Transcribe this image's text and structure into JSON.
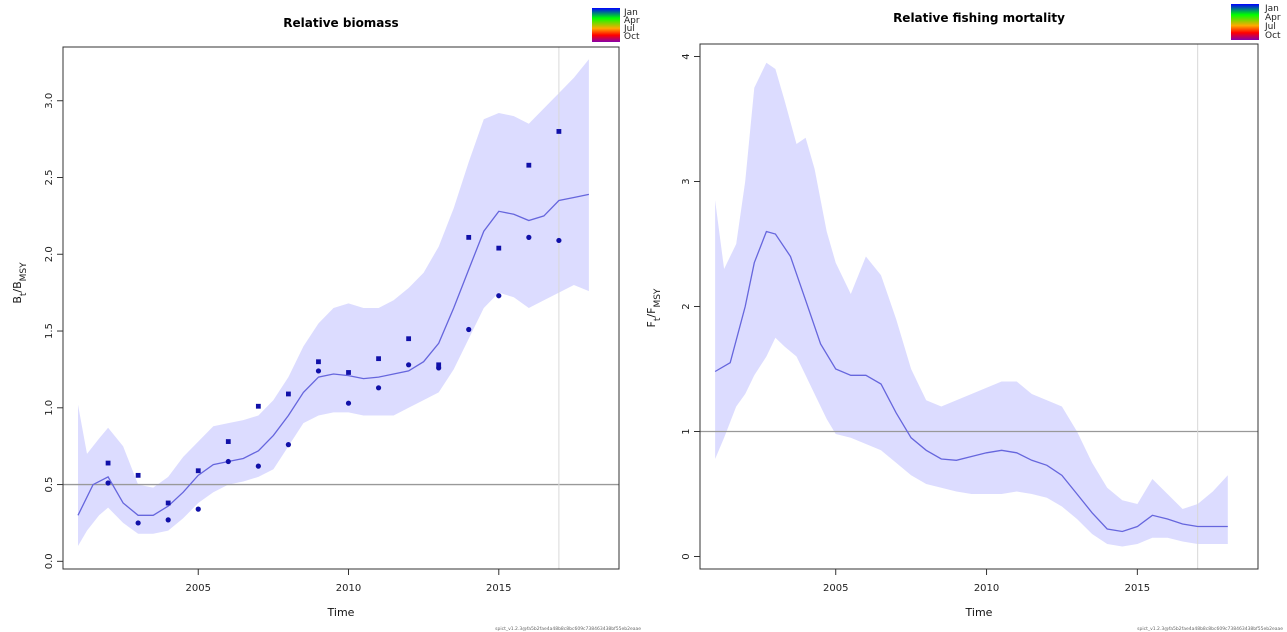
{
  "season_legend": {
    "labels": [
      "Jan",
      "Apr",
      "Jul",
      "Oct"
    ]
  },
  "chart_data": [
    {
      "type": "line",
      "title": "Relative biomass",
      "xlabel": "Time",
      "ylabel_main": "B",
      "ylabel_sub1": "t",
      "ylabel_sep": "/B",
      "ylabel_sub2": "MSY",
      "xlim": [
        2000.5,
        2019.0
      ],
      "ylim": [
        -0.05,
        3.35
      ],
      "xticks": [
        2005,
        2010,
        2015
      ],
      "yticks": [
        0.0,
        0.5,
        1.0,
        1.5,
        2.0,
        2.5,
        3.0
      ],
      "xtick_labels": [
        "2005",
        "2010",
        "2015"
      ],
      "ytick_labels": [
        "0.0",
        "0.5",
        "1.0",
        "1.5",
        "2.0",
        "2.5",
        "3.0"
      ],
      "reference_line_y": 0.5,
      "vertical_line_x": 2017.0,
      "band_x": [
        2001.0,
        2001.3,
        2001.7,
        2002.0,
        2002.5,
        2003.0,
        2003.5,
        2004.0,
        2004.5,
        2005.0,
        2005.5,
        2006.0,
        2006.5,
        2007.0,
        2007.5,
        2008.0,
        2008.5,
        2009.0,
        2009.5,
        2010.0,
        2010.5,
        2011.0,
        2011.5,
        2012.0,
        2012.5,
        2013.0,
        2013.5,
        2014.0,
        2014.5,
        2015.0,
        2015.5,
        2016.0,
        2016.5,
        2017.0,
        2017.5,
        2018.0
      ],
      "band_upper": [
        1.02,
        0.7,
        0.8,
        0.87,
        0.75,
        0.5,
        0.48,
        0.55,
        0.68,
        0.78,
        0.88,
        0.9,
        0.92,
        0.95,
        1.05,
        1.2,
        1.4,
        1.55,
        1.65,
        1.68,
        1.65,
        1.65,
        1.7,
        1.78,
        1.88,
        2.05,
        2.3,
        2.6,
        2.88,
        2.92,
        2.9,
        2.85,
        2.95,
        3.05,
        3.15,
        3.27
      ],
      "band_lower": [
        0.1,
        0.2,
        0.3,
        0.35,
        0.25,
        0.18,
        0.18,
        0.2,
        0.28,
        0.38,
        0.45,
        0.5,
        0.52,
        0.55,
        0.6,
        0.75,
        0.9,
        0.95,
        0.97,
        0.97,
        0.95,
        0.95,
        0.95,
        1.0,
        1.05,
        1.1,
        1.25,
        1.45,
        1.65,
        1.75,
        1.72,
        1.65,
        1.7,
        1.75,
        1.8,
        1.76
      ],
      "line_x": [
        2001.0,
        2001.5,
        2002.0,
        2002.5,
        2003.0,
        2003.5,
        2004.0,
        2004.5,
        2005.0,
        2005.5,
        2006.0,
        2006.5,
        2007.0,
        2007.5,
        2008.0,
        2008.5,
        2009.0,
        2009.5,
        2010.0,
        2010.5,
        2011.0,
        2011.5,
        2012.0,
        2012.5,
        2013.0,
        2013.5,
        2014.0,
        2014.5,
        2015.0,
        2015.5,
        2016.0,
        2016.5,
        2017.0,
        2017.5,
        2018.0
      ],
      "line_y": [
        0.3,
        0.5,
        0.55,
        0.38,
        0.3,
        0.3,
        0.36,
        0.45,
        0.56,
        0.63,
        0.65,
        0.67,
        0.72,
        0.82,
        0.95,
        1.1,
        1.2,
        1.22,
        1.21,
        1.19,
        1.2,
        1.22,
        1.24,
        1.3,
        1.42,
        1.65,
        1.9,
        2.15,
        2.28,
        2.26,
        2.22,
        2.25,
        2.35,
        2.37,
        2.39
      ],
      "points": [
        [
          2002.0,
          0.64
        ],
        [
          2002.0,
          0.51
        ],
        [
          2003.0,
          0.56
        ],
        [
          2003.0,
          0.25
        ],
        [
          2004.0,
          0.38
        ],
        [
          2004.0,
          0.27
        ],
        [
          2005.0,
          0.59
        ],
        [
          2005.0,
          0.34
        ],
        [
          2006.0,
          0.78
        ],
        [
          2006.0,
          0.65
        ],
        [
          2007.0,
          1.01
        ],
        [
          2007.0,
          0.62
        ],
        [
          2008.0,
          1.09
        ],
        [
          2008.0,
          0.76
        ],
        [
          2009.0,
          1.3
        ],
        [
          2009.0,
          1.24
        ],
        [
          2010.0,
          1.23
        ],
        [
          2010.0,
          1.03
        ],
        [
          2011.0,
          1.32
        ],
        [
          2011.0,
          1.13
        ],
        [
          2012.0,
          1.45
        ],
        [
          2012.0,
          1.28
        ],
        [
          2013.0,
          1.28
        ],
        [
          2013.0,
          1.26
        ],
        [
          2014.0,
          2.11
        ],
        [
          2014.0,
          1.51
        ],
        [
          2015.0,
          2.04
        ],
        [
          2015.0,
          1.73
        ],
        [
          2016.0,
          2.58
        ],
        [
          2016.0,
          2.11
        ],
        [
          2017.0,
          2.8
        ],
        [
          2017.0,
          2.09
        ]
      ],
      "footnote": "spict_v1.2.3@fa5b2fae4a48b8c8bc609c738463438bf55eb2eaae"
    },
    {
      "type": "line",
      "title": "Relative fishing mortality",
      "xlabel": "Time",
      "ylabel_main": "F",
      "ylabel_sub1": "t",
      "ylabel_sep": "/F",
      "ylabel_sub2": "MSY",
      "xlim": [
        2000.5,
        2019.0
      ],
      "ylim": [
        -0.1,
        4.1
      ],
      "xticks": [
        2005,
        2010,
        2015
      ],
      "yticks": [
        0,
        1,
        2,
        3,
        4
      ],
      "xtick_labels": [
        "2005",
        "2010",
        "2015"
      ],
      "ytick_labels": [
        "0",
        "1",
        "2",
        "3",
        "4"
      ],
      "reference_line_y": 1.0,
      "vertical_line_x": 2017.0,
      "band_x": [
        2001.0,
        2001.3,
        2001.7,
        2002.0,
        2002.3,
        2002.7,
        2003.0,
        2003.3,
        2003.7,
        2004.0,
        2004.3,
        2004.7,
        2005.0,
        2005.5,
        2006.0,
        2006.5,
        2007.0,
        2007.5,
        2008.0,
        2008.5,
        2009.0,
        2009.5,
        2010.0,
        2010.5,
        2011.0,
        2011.5,
        2012.0,
        2012.5,
        2013.0,
        2013.5,
        2014.0,
        2014.5,
        2015.0,
        2015.5,
        2016.0,
        2016.5,
        2017.0,
        2017.5,
        2018.0
      ],
      "band_upper": [
        2.85,
        2.3,
        2.5,
        3.0,
        3.75,
        3.95,
        3.9,
        3.65,
        3.3,
        3.35,
        3.1,
        2.6,
        2.35,
        2.1,
        2.4,
        2.25,
        1.9,
        1.5,
        1.25,
        1.2,
        1.25,
        1.3,
        1.35,
        1.4,
        1.4,
        1.3,
        1.25,
        1.2,
        1.0,
        0.75,
        0.55,
        0.45,
        0.42,
        0.62,
        0.5,
        0.38,
        0.42,
        0.52,
        0.65
      ],
      "band_lower": [
        0.78,
        0.95,
        1.2,
        1.3,
        1.45,
        1.6,
        1.75,
        1.68,
        1.6,
        1.45,
        1.3,
        1.1,
        0.98,
        0.95,
        0.9,
        0.85,
        0.75,
        0.65,
        0.58,
        0.55,
        0.52,
        0.5,
        0.5,
        0.5,
        0.52,
        0.5,
        0.47,
        0.4,
        0.3,
        0.18,
        0.1,
        0.08,
        0.1,
        0.15,
        0.15,
        0.12,
        0.1,
        0.1,
        0.1
      ],
      "line_x": [
        2001.0,
        2001.5,
        2002.0,
        2002.3,
        2002.7,
        2003.0,
        2003.5,
        2004.0,
        2004.5,
        2005.0,
        2005.5,
        2006.0,
        2006.5,
        2007.0,
        2007.5,
        2008.0,
        2008.5,
        2009.0,
        2009.5,
        2010.0,
        2010.5,
        2011.0,
        2011.5,
        2012.0,
        2012.5,
        2013.0,
        2013.5,
        2014.0,
        2014.5,
        2015.0,
        2015.5,
        2016.0,
        2016.5,
        2017.0,
        2017.5,
        2018.0
      ],
      "line_y": [
        1.48,
        1.55,
        2.0,
        2.35,
        2.6,
        2.58,
        2.4,
        2.05,
        1.7,
        1.5,
        1.45,
        1.45,
        1.38,
        1.15,
        0.95,
        0.85,
        0.78,
        0.77,
        0.8,
        0.83,
        0.85,
        0.83,
        0.77,
        0.73,
        0.65,
        0.5,
        0.35,
        0.22,
        0.2,
        0.24,
        0.33,
        0.3,
        0.26,
        0.24,
        0.24,
        0.24
      ]
    }
  ]
}
